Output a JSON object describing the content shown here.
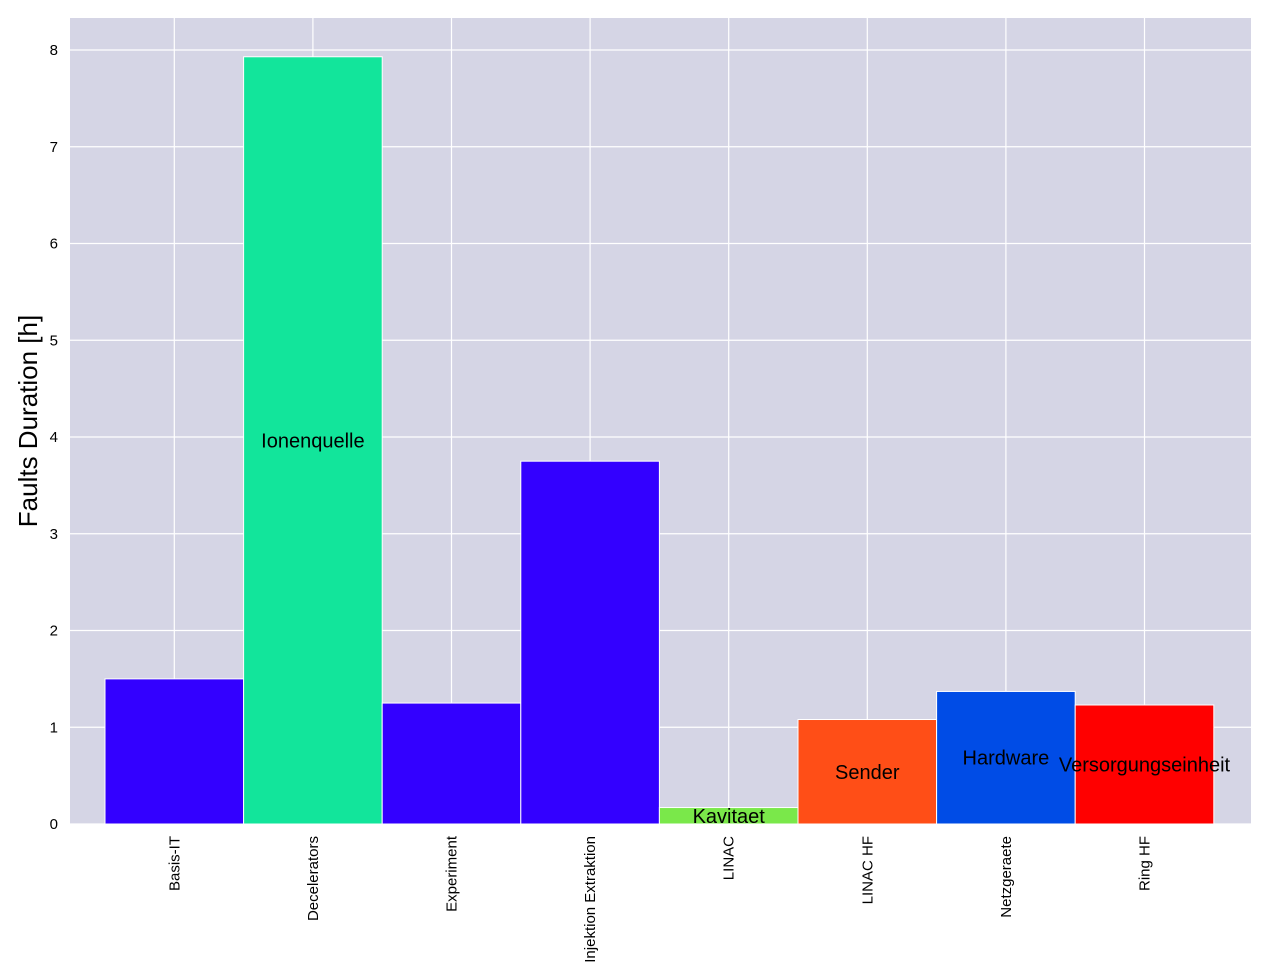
{
  "chart_data": {
    "type": "bar",
    "title": "",
    "xlabel": "",
    "ylabel": "Faults Duration [h]",
    "ylim": [
      0,
      8.3
    ],
    "yticks": [
      "0",
      "1",
      "2",
      "3",
      "4",
      "5",
      "6",
      "7",
      "8"
    ],
    "grid": true,
    "background_color": "#d5d5e5",
    "categories": [
      "Basis-IT",
      "Decelerators",
      "Experiment",
      "Injektion Extraktion",
      "LINAC",
      "LINAC HF",
      "Netzgeraete",
      "Ring HF"
    ],
    "bars": [
      {
        "category": "Basis-IT",
        "value": 1.5,
        "color": "#3300ff",
        "label": ""
      },
      {
        "category": "Decelerators",
        "value": 7.93,
        "color": "#12e59b",
        "label": "Ionenquelle"
      },
      {
        "category": "Experiment",
        "value": 1.25,
        "color": "#3300ff",
        "label": ""
      },
      {
        "category": "Injektion Extraktion",
        "value": 3.75,
        "color": "#3300ff",
        "label": ""
      },
      {
        "category": "LINAC",
        "value": 0.17,
        "color": "#7ae84a",
        "label": "Kavitaet"
      },
      {
        "category": "LINAC HF",
        "value": 1.08,
        "color": "#ff4e17",
        "label": "Sender"
      },
      {
        "category": "Netzgeraete",
        "value": 1.37,
        "color": "#004ce6",
        "label": "Hardware"
      },
      {
        "category": "Ring HF",
        "value": 1.23,
        "color": "#ff0000",
        "label": "Versorgungseinheit"
      }
    ]
  }
}
